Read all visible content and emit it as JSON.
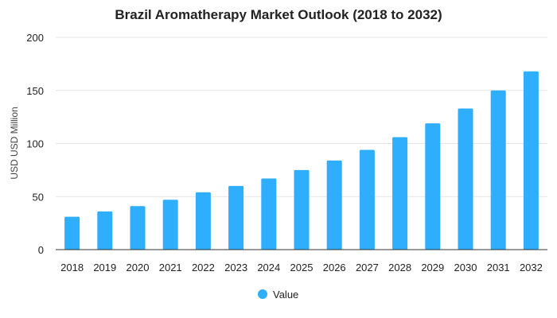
{
  "chart_data": {
    "type": "bar",
    "title": "Brazil Aromatherapy Market Outlook (2018 to 2032)",
    "xlabel": "",
    "ylabel": "USD USD Million",
    "categories": [
      "2018",
      "2019",
      "2020",
      "2021",
      "2022",
      "2023",
      "2024",
      "2025",
      "2026",
      "2027",
      "2028",
      "2029",
      "2030",
      "2031",
      "2032"
    ],
    "series": [
      {
        "name": "Value",
        "values": [
          31,
          36,
          41,
          47,
          54,
          60,
          67,
          75,
          84,
          94,
          106,
          119,
          133,
          150,
          168
        ]
      }
    ],
    "ylim": [
      0,
      200
    ],
    "yticks": [
      "0",
      "50",
      "100",
      "150",
      "200"
    ],
    "grid": true,
    "legend": "bottom-center",
    "colors": {
      "bar": "#2eaefc",
      "grid": "#e5e5e5",
      "axis": "#333333"
    }
  }
}
